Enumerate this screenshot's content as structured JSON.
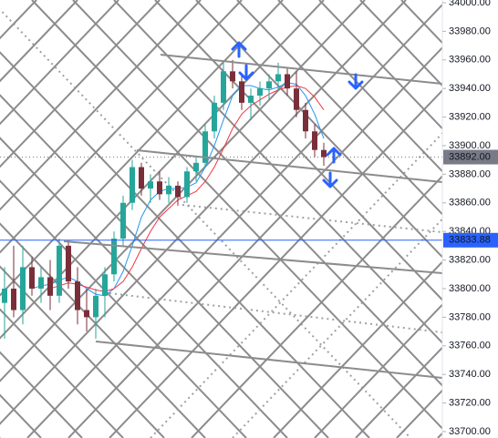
{
  "chart_data": {
    "type": "candlestick",
    "ylim": [
      33695.5,
      34001.9
    ],
    "yticks": [
      {
        "value": 33700,
        "label": "33700.00"
      },
      {
        "value": 33720,
        "label": "33720.00"
      },
      {
        "value": 33740,
        "label": "33740.00"
      },
      {
        "value": 33760,
        "label": "33760.00"
      },
      {
        "value": 33780,
        "label": "33780.00"
      },
      {
        "value": 33800,
        "label": "33800.00"
      },
      {
        "value": 33820,
        "label": "33820.00"
      },
      {
        "value": 33840,
        "label": "33840.00"
      },
      {
        "value": 33860,
        "label": "33860.00"
      },
      {
        "value": 33880,
        "label": "33880.00"
      },
      {
        "value": 33900,
        "label": "33900.00"
      },
      {
        "value": 33920,
        "label": "33920.00"
      },
      {
        "value": 33940,
        "label": "33940.00"
      },
      {
        "value": 33960,
        "label": "33960.00"
      },
      {
        "value": 33980,
        "label": "33980.00"
      },
      {
        "value": 34000,
        "label": "34000.00"
      }
    ],
    "up_color": "#26a69a",
    "down_color": "#7a2e3a",
    "open": [
      33790,
      33800,
      33785,
      33815,
      33800,
      33808,
      33795,
      33830,
      33805,
      33785,
      33780,
      33795,
      33810,
      33835,
      33860,
      33885,
      33870,
      33875,
      33866,
      33872,
      33864,
      33882,
      33888,
      33910,
      33930,
      33952,
      33945,
      33930,
      33935,
      33940,
      33945,
      33950,
      33940,
      33925,
      33910,
      33897
    ],
    "high": [
      33815,
      33830,
      33830,
      33822,
      33815,
      33820,
      33835,
      33834,
      33815,
      33800,
      33800,
      33815,
      33840,
      33865,
      33890,
      33888,
      33880,
      33882,
      33878,
      33875,
      33885,
      33892,
      33915,
      33935,
      33958,
      33960,
      33950,
      33940,
      33945,
      33950,
      33958,
      33955,
      33952,
      33930,
      33915,
      33902
    ],
    "low": [
      33765,
      33780,
      33775,
      33795,
      33790,
      33785,
      33790,
      33800,
      33775,
      33770,
      33765,
      33780,
      33805,
      33830,
      33855,
      33865,
      33860,
      33862,
      33860,
      33858,
      33860,
      33875,
      33885,
      33905,
      33925,
      33940,
      33925,
      33918,
      33928,
      33932,
      33938,
      33935,
      33920,
      33905,
      33892,
      33886
    ],
    "close": [
      33800,
      33785,
      33815,
      33800,
      33808,
      33795,
      33830,
      33805,
      33785,
      33780,
      33795,
      33810,
      33835,
      33860,
      33885,
      33870,
      33875,
      33866,
      33872,
      33864,
      33882,
      33888,
      33910,
      33930,
      33952,
      33945,
      33930,
      33935,
      33940,
      33945,
      33950,
      33940,
      33925,
      33910,
      33897,
      33892
    ],
    "series": [
      {
        "color": "#2196f3",
        "values": [
          null,
          null,
          null,
          33800,
          33802,
          33803,
          33806,
          33808,
          33805,
          33800,
          33796,
          33795,
          33800,
          33812,
          33830,
          33850,
          33862,
          33868,
          33870,
          33870,
          33871,
          33874,
          33885,
          33900,
          33918,
          33935,
          33942,
          33942,
          33940,
          33939,
          33941,
          33944,
          33943,
          33935,
          33922,
          33905
        ]
      },
      {
        "color": "#f23645",
        "values": [
          null,
          null,
          null,
          null,
          null,
          33800,
          33802,
          33804,
          33803,
          33801,
          33799,
          33798,
          33800,
          33805,
          33815,
          33828,
          33840,
          33850,
          33856,
          33862,
          33865,
          33868,
          33875,
          33885,
          33898,
          33912,
          33922,
          33928,
          33932,
          33936,
          33939,
          33941,
          33942,
          33940,
          33934,
          33925
        ]
      }
    ],
    "price_labels": [
      {
        "value": 33892,
        "label": "33892.00",
        "color": "#787b86"
      },
      {
        "value": 33833.88,
        "label": "33833.88",
        "color": "#2962ff"
      }
    ]
  }
}
